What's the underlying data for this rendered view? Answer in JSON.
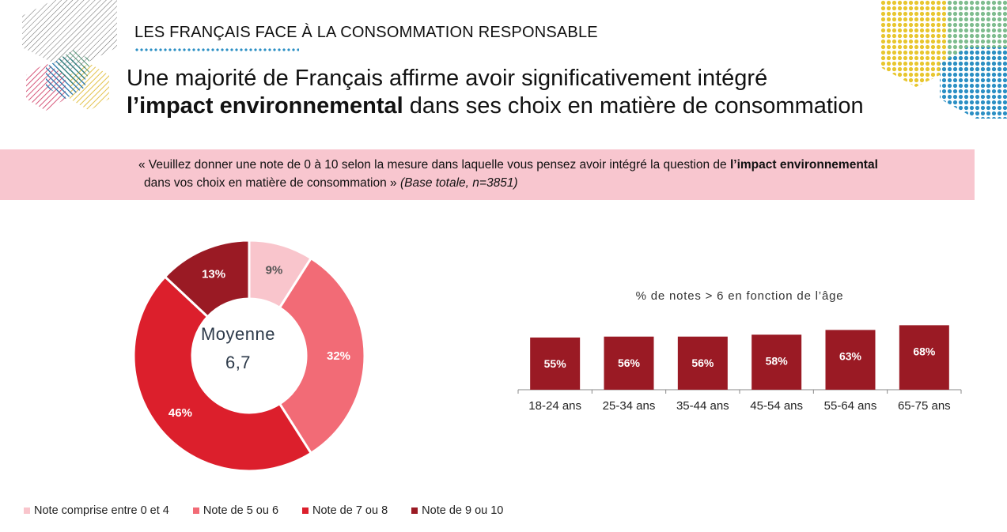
{
  "header": {
    "kicker": "LES FRANÇAIS FACE À LA CONSOMMATION RESPONSABLE",
    "title_line1": "Une majorité de Français affirme avoir significativement intégré",
    "title_bold": "l’impact environnemental",
    "title_rest": " dans ses choix en matière de consommation"
  },
  "question": {
    "part1": "« Veuillez donner une note de 0 à 10 selon la mesure dans laquelle vous pensez avoir intégré la question de ",
    "bold": "l’impact environnemental",
    "part2": "dans vos choix en matière de consommation » ",
    "base": "(Base totale, n=3851)"
  },
  "donut_center": {
    "label": "Moyenne",
    "value": "6,7"
  },
  "bars_title": "% de notes > 6 en fonction de l’âge",
  "colors": {
    "very_light": "#f9c5cc",
    "light": "#f26b76",
    "mid": "#dc1f2c",
    "dark": "#9a1a24",
    "accent_blue": "#2b8fc4"
  },
  "legend": [
    {
      "label": "Note comprise entre 0 et 4",
      "color": "#f9c5cc"
    },
    {
      "label": "Note de 5 ou 6",
      "color": "#f26b76"
    },
    {
      "label": "Note de 7 ou 8",
      "color": "#dc1f2c"
    },
    {
      "label": "Note de 9 ou 10",
      "color": "#9a1a24"
    }
  ],
  "chart_data": [
    {
      "type": "pie",
      "subtype": "donut",
      "categories": [
        "Note comprise entre 0 et 4",
        "Note de 5 ou 6",
        "Note de 7 ou 8",
        "Note de 9 ou 10"
      ],
      "values": [
        9,
        32,
        46,
        13
      ],
      "labels": [
        "9%",
        "32%",
        "46%",
        "13%"
      ],
      "colors": [
        "#f9c5cc",
        "#f26b76",
        "#dc1f2c",
        "#9a1a24"
      ],
      "center_text": [
        "Moyenne",
        "6,7"
      ],
      "legend_position": "bottom-left"
    },
    {
      "type": "bar",
      "title": "% de notes > 6 en fonction de l’âge",
      "categories": [
        "18-24 ans",
        "25-34 ans",
        "35-44 ans",
        "45-54 ans",
        "55-64 ans",
        "65-75 ans"
      ],
      "values": [
        55,
        56,
        56,
        58,
        63,
        68
      ],
      "labels": [
        "55%",
        "56%",
        "56%",
        "58%",
        "63%",
        "68%"
      ],
      "color": "#9a1a24",
      "ylim": [
        0,
        100
      ],
      "grid": false
    }
  ]
}
